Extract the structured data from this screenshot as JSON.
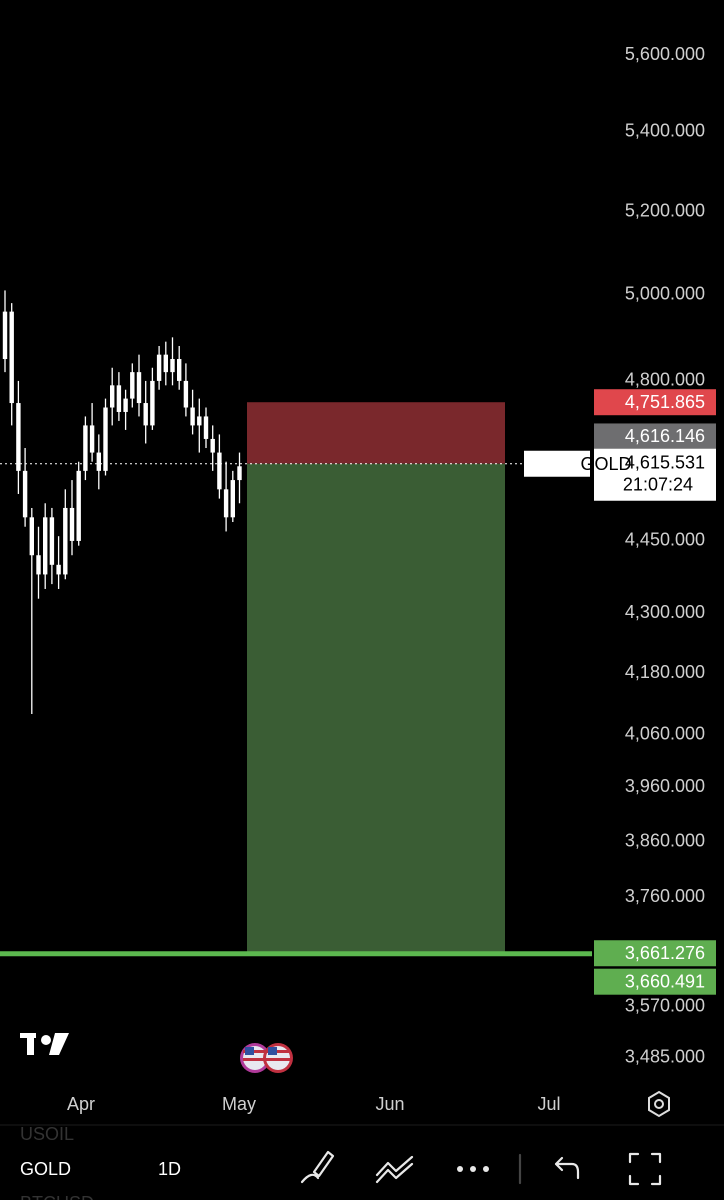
{
  "chart_data": {
    "type": "candlestick",
    "symbol": "GOLD",
    "open": [
      4850,
      4960,
      4750,
      4600,
      4500,
      4420,
      4380,
      4500,
      4400,
      4380,
      4520,
      4450,
      4600,
      4700,
      4640,
      4600,
      4740,
      4790,
      4730,
      4760,
      4820,
      4750,
      4700,
      4800,
      4860,
      4820,
      4850,
      4800,
      4740,
      4700,
      4720,
      4670,
      4640,
      4560,
      4500,
      4580
    ],
    "high": [
      5010,
      4980,
      4800,
      4650,
      4520,
      4480,
      4530,
      4520,
      4460,
      4560,
      4580,
      4620,
      4720,
      4750,
      4680,
      4760,
      4830,
      4820,
      4780,
      4840,
      4860,
      4800,
      4830,
      4880,
      4890,
      4900,
      4880,
      4840,
      4780,
      4760,
      4740,
      4700,
      4680,
      4620,
      4600,
      4640
    ],
    "low": [
      4820,
      4700,
      4550,
      4480,
      4100,
      4330,
      4350,
      4360,
      4350,
      4370,
      4420,
      4440,
      4580,
      4620,
      4560,
      4590,
      4700,
      4710,
      4690,
      4740,
      4720,
      4660,
      4690,
      4780,
      4790,
      4790,
      4780,
      4720,
      4680,
      4640,
      4650,
      4600,
      4540,
      4470,
      4490,
      4530
    ],
    "close": [
      4960,
      4750,
      4600,
      4500,
      4420,
      4380,
      4500,
      4400,
      4380,
      4520,
      4450,
      4600,
      4700,
      4640,
      4600,
      4740,
      4790,
      4730,
      4760,
      4820,
      4750,
      4700,
      4800,
      4860,
      4820,
      4850,
      4800,
      4740,
      4700,
      4720,
      4670,
      4640,
      4560,
      4500,
      4580,
      4610
    ],
    "color": "#ffffff",
    "ylog": true,
    "ylim": [
      3440,
      5748
    ],
    "yticks": [
      {
        "value": 5600,
        "label": "5,600.000"
      },
      {
        "value": 5400,
        "label": "5,400.000"
      },
      {
        "value": 5200,
        "label": "5,200.000"
      },
      {
        "value": 5000,
        "label": "5,000.000"
      },
      {
        "value": 4800,
        "label": "4,800.000"
      },
      {
        "value": 4450,
        "label": "4,450.000"
      },
      {
        "value": 4300,
        "label": "4,300.000"
      },
      {
        "value": 4180,
        "label": "4,180.000"
      },
      {
        "value": 4060,
        "label": "4,060.000"
      },
      {
        "value": 3960,
        "label": "3,960.000"
      },
      {
        "value": 3860,
        "label": "3,860.000"
      },
      {
        "value": 3760,
        "label": "3,760.000"
      },
      {
        "value": 3570,
        "label": "3,570.000"
      },
      {
        "value": 3485,
        "label": "3,485.000"
      }
    ],
    "xtick_labels": [
      "Apr",
      "May",
      "Jun",
      "Jul"
    ],
    "last_price": {
      "value": 4615.531,
      "label": "4,615.531"
    },
    "countdown": "21:07:24",
    "price_labels": [
      {
        "value": 4751.865,
        "label": "4,751.865",
        "color": "#e0474c"
      },
      {
        "value": 4616.146,
        "label": "4,616.146",
        "color": "#6e6e70"
      },
      {
        "value": 3661.276,
        "label": "3,661.276",
        "color": "#5fae50"
      },
      {
        "value": 3660.491,
        "label": "3,660.491",
        "color": "#5fae50"
      }
    ],
    "stop_color": "#7a282c",
    "target_color": "#3a5d34",
    "line_color": "#5cb84f"
  },
  "toolbar": {
    "symbols": [
      "USOIL",
      "GOLD",
      "BTCUSD"
    ],
    "interval": "1D"
  }
}
